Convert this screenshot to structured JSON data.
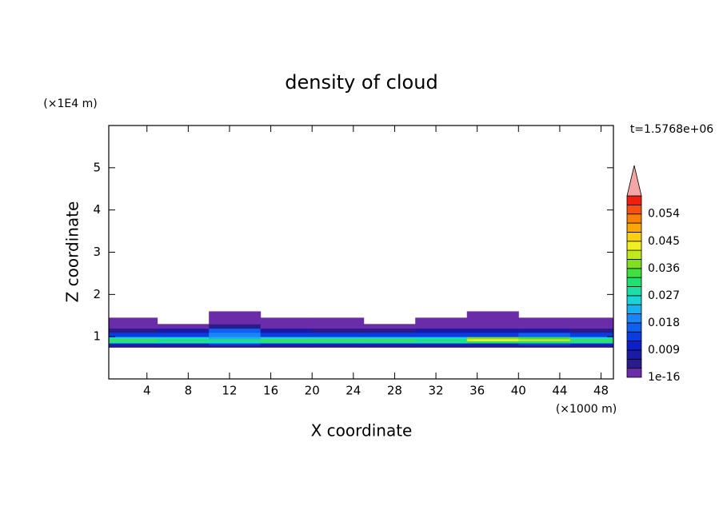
{
  "chart_data": {
    "type": "contour",
    "title": "density of cloud",
    "x_label": "X coordinate",
    "y_label": "Z coordinate",
    "x_unit": "(×1000 m)",
    "y_unit": "(×1E4 m)",
    "time_label": "t=1.5768e+06",
    "xlim": [
      0.3,
      49.2
    ],
    "ylim": [
      0,
      6
    ],
    "xticks": [
      4,
      8,
      12,
      16,
      20,
      24,
      28,
      32,
      36,
      40,
      44,
      48
    ],
    "yticks": [
      1,
      2,
      3,
      4,
      5
    ],
    "xbins": [
      0,
      5,
      10,
      15,
      20,
      25,
      30,
      35,
      40,
      45,
      50
    ],
    "zbins": [
      0.75,
      0.8,
      0.85,
      0.9,
      0.95,
      1.0,
      1.1,
      1.2,
      1.3,
      1.45,
      1.6
    ],
    "values": [
      [
        0.004,
        0.004,
        0.004,
        0.004,
        0.004,
        0.004,
        0.004,
        0.004,
        0.004,
        0.004
      ],
      [
        0.01,
        0.011,
        0.012,
        0.01,
        0.011,
        0.01,
        0.01,
        0.011,
        0.012,
        0.01
      ],
      [
        0.028,
        0.027,
        0.025,
        0.028,
        0.029,
        0.028,
        0.027,
        0.03,
        0.031,
        0.028
      ],
      [
        0.033,
        0.032,
        0.03,
        0.033,
        0.034,
        0.033,
        0.032,
        0.042,
        0.04,
        0.033
      ],
      [
        0.025,
        0.024,
        0.022,
        0.025,
        0.026,
        0.025,
        0.024,
        0.036,
        0.034,
        0.026
      ],
      [
        0.013,
        0.013,
        0.02,
        0.014,
        0.013,
        0.012,
        0.013,
        0.014,
        0.015,
        0.013
      ],
      [
        0.005,
        0.006,
        0.016,
        0.006,
        0.005,
        0.005,
        0.006,
        0.007,
        0.006,
        0.005
      ],
      [
        0.002,
        0.002,
        0.004,
        0.002,
        0.002,
        0.002,
        0.002,
        0.002,
        0.002,
        0.002
      ],
      [
        0.001,
        null,
        0.001,
        0.001,
        0.001,
        null,
        0.001,
        0.001,
        0.001,
        0.001
      ],
      [
        null,
        null,
        0.001,
        null,
        null,
        null,
        null,
        0.001,
        null,
        null
      ]
    ],
    "levels": [
      1e-16,
      0.003,
      0.006,
      0.009,
      0.012,
      0.015,
      0.018,
      0.021,
      0.024,
      0.027,
      0.03,
      0.033,
      0.036,
      0.039,
      0.042,
      0.045,
      0.048,
      0.051,
      0.054,
      0.057,
      0.06
    ],
    "colors": [
      "#6a2ca8",
      "#2a1a8c",
      "#1a1aa6",
      "#0d1fc8",
      "#0a3ce0",
      "#0f5ff0",
      "#1a86f5",
      "#1ab0f0",
      "#1ad4d8",
      "#1ae0a8",
      "#20e070",
      "#40e040",
      "#80e020",
      "#c0e820",
      "#f0f020",
      "#f8d010",
      "#f8a808",
      "#f88008",
      "#f85010",
      "#f02010"
    ],
    "extend_color": "#f4a6a6",
    "colorbar_ticks": [
      1e-16,
      0.009,
      0.018,
      0.027,
      0.036,
      0.045,
      0.054
    ]
  }
}
